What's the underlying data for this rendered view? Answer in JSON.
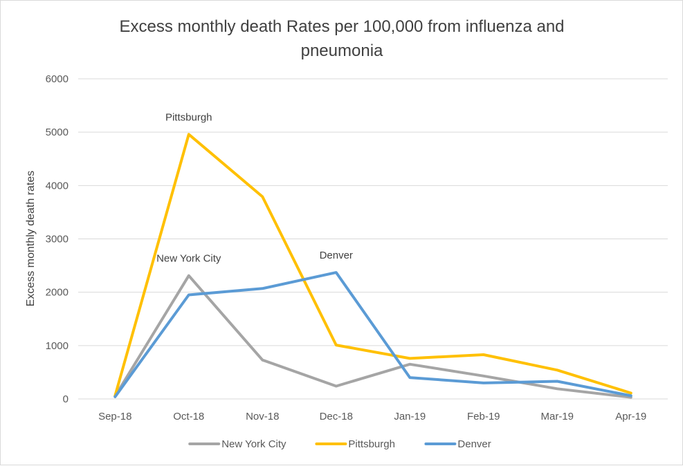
{
  "chart_data": {
    "type": "line",
    "title_lines": [
      "Excess monthly death Rates per 100,000 from influenza and",
      "pneumonia"
    ],
    "xlabel": "",
    "ylabel": "Excess monthly death rates",
    "categories": [
      "Sep-18",
      "Oct-18",
      "Nov-18",
      "Dec-18",
      "Jan-19",
      "Feb-19",
      "Mar-19",
      "Apr-19"
    ],
    "ylim": [
      0,
      6000
    ],
    "yticks": [
      0,
      1000,
      2000,
      3000,
      4000,
      5000,
      6000
    ],
    "grid": true,
    "legend_position": "bottom",
    "series": [
      {
        "name": "New York City",
        "color": "#a5a5a5",
        "values": [
          50,
          2310,
          730,
          240,
          650,
          430,
          190,
          30
        ]
      },
      {
        "name": "Pittsburgh",
        "color": "#ffc000",
        "values": [
          60,
          4960,
          3790,
          1010,
          760,
          830,
          540,
          110
        ]
      },
      {
        "name": "Denver",
        "color": "#5b9bd5",
        "values": [
          40,
          1950,
          2070,
          2370,
          400,
          300,
          330,
          60
        ]
      }
    ],
    "annotations": [
      {
        "text": "Pittsburgh",
        "category": "Oct-18",
        "value": 4960
      },
      {
        "text": "New York City",
        "category": "Oct-18",
        "value": 2310
      },
      {
        "text": "Denver",
        "category": "Dec-18",
        "value": 2370
      }
    ]
  }
}
